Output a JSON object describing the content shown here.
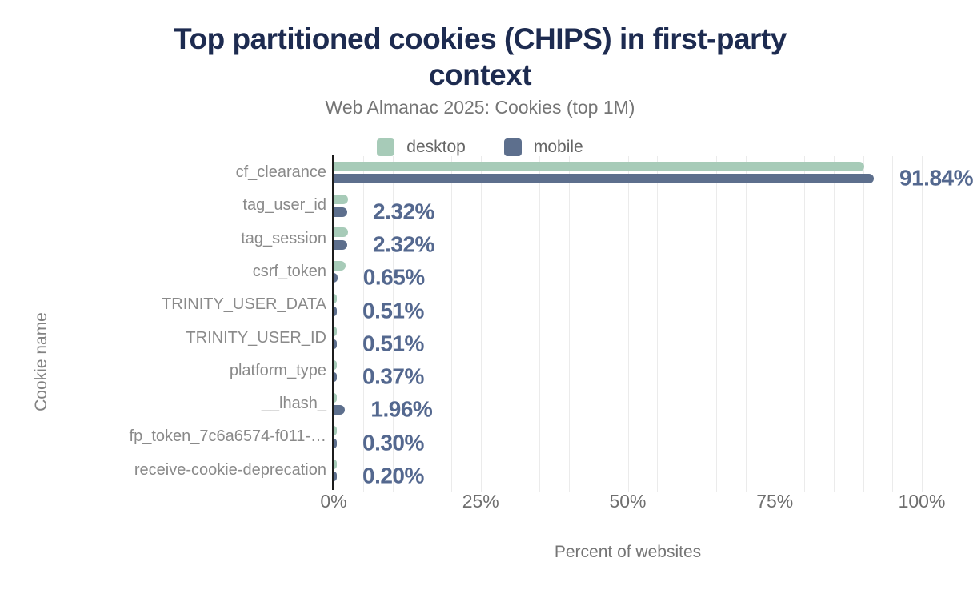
{
  "chart_data": {
    "type": "bar",
    "orientation": "horizontal",
    "title": "Top partitioned cookies (CHIPS) in first-party context",
    "title_lines": [
      "Top partitioned cookies (CHIPS) in first-party",
      "context"
    ],
    "subtitle": "Web Almanac 2025: Cookies (top 1M)",
    "xlabel": "Percent of websites",
    "ylabel": "Cookie name",
    "xlim": [
      0,
      100
    ],
    "x_grid_step_percent": 5,
    "grid": "vertical minor gridlines every 5%, no horizontal gridlines",
    "legend_position": "top-center",
    "categories": [
      "cf_clearance",
      "tag_user_id",
      "tag_session",
      "csrf_token",
      "TRINITY_USER_DATA",
      "TRINITY_USER_ID",
      "platform_type",
      "__lhash_",
      "fp_token_7c6a6574-f011-…",
      "receive-cookie-deprecation"
    ],
    "series": [
      {
        "name": "desktop",
        "color": "#a7cbb8",
        "values": [
          90.2,
          2.5,
          2.5,
          2.1,
          0.45,
          0.55,
          0.45,
          0.4,
          0.35,
          0.25
        ]
      },
      {
        "name": "mobile",
        "color": "#5d6f8d",
        "values": [
          91.84,
          2.32,
          2.32,
          0.65,
          0.51,
          0.51,
          0.37,
          1.96,
          0.3,
          0.2
        ]
      }
    ],
    "value_labels": [
      "91.84%",
      "2.32%",
      "2.32%",
      "0.65%",
      "0.51%",
      "0.51%",
      "0.37%",
      "1.96%",
      "0.30%",
      "0.20%"
    ],
    "x_ticks": [
      {
        "label": "0%",
        "value": 0
      },
      {
        "label": "25%",
        "value": 25
      },
      {
        "label": "50%",
        "value": 50
      },
      {
        "label": "75%",
        "value": 75
      },
      {
        "label": "100%",
        "value": 100
      }
    ]
  },
  "colors": {
    "title": "#1d2b50",
    "subtitle": "#757575",
    "desktop_bar": "#a7cbb8",
    "mobile_bar": "#5d6f8d",
    "value_label": "#54688f",
    "category_label": "#8a8a8a",
    "axis_line": "#1c1c1c",
    "gridline": "#ebebeb",
    "background": "#ffffff"
  }
}
